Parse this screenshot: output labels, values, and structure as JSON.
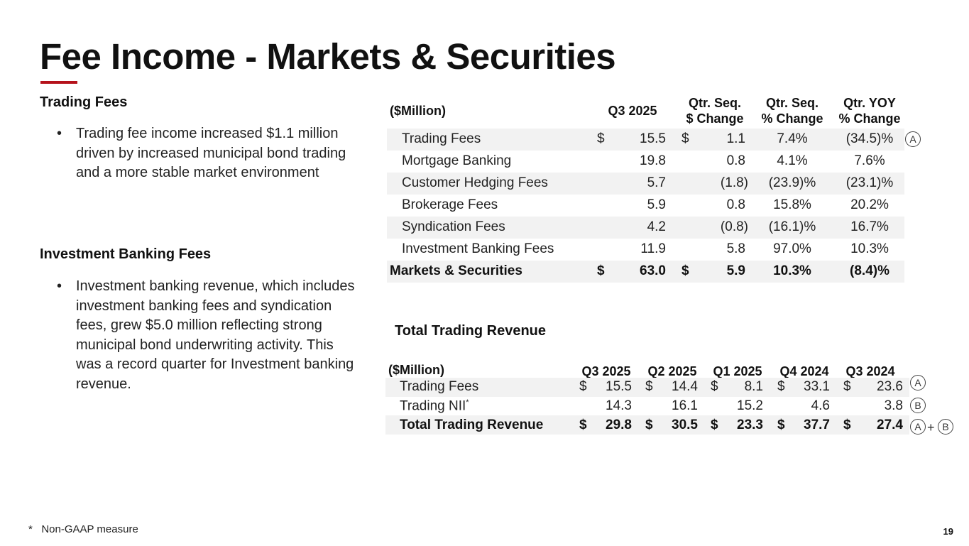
{
  "title": "Fee Income - Markets & Securities",
  "left": {
    "section1_heading": "Trading Fees",
    "section1_bullet": "Trading fee income increased $1.1 million driven by increased municipal bond trading and a more stable market environment",
    "section2_heading": "Investment Banking Fees",
    "section2_bullet": "Investment banking revenue, which includes investment banking fees and syndication fees, grew $5.0 million reflecting strong municipal bond underwriting activity. This was a record quarter for Investment banking revenue.",
    "bullet_symbol": "•"
  },
  "table1": {
    "unit_label": "($Million)",
    "col_q3": "Q3 2025",
    "col_seq_d_1": "Qtr. Seq.",
    "col_seq_d_2": "$ Change",
    "col_seq_p_1": "Qtr. Seq.",
    "col_seq_p_2": "% Change",
    "col_yoy_1": "Qtr. YOY",
    "col_yoy_2": "% Change",
    "rows": [
      {
        "label": "Trading Fees",
        "cur1": "$",
        "q3": "15.5",
        "cur2": "$",
        "chg": "1.1",
        "pct": "7.4%",
        "yoy": "(34.5)%",
        "marker": "A"
      },
      {
        "label": "Mortgage Banking",
        "cur1": "",
        "q3": "19.8",
        "cur2": "",
        "chg": "0.8",
        "pct": "4.1%",
        "yoy": "7.6%"
      },
      {
        "label": "Customer Hedging Fees",
        "cur1": "",
        "q3": "5.7",
        "cur2": "",
        "chg": "(1.8)",
        "pct": "(23.9)%",
        "yoy": "(23.1)%"
      },
      {
        "label": "Brokerage Fees",
        "cur1": "",
        "q3": "5.9",
        "cur2": "",
        "chg": "0.8",
        "pct": "15.8%",
        "yoy": "20.2%"
      },
      {
        "label": "Syndication Fees",
        "cur1": "",
        "q3": "4.2",
        "cur2": "",
        "chg": "(0.8)",
        "pct": "(16.1)%",
        "yoy": "16.7%"
      },
      {
        "label": "Investment Banking Fees",
        "cur1": "",
        "q3": "11.9",
        "cur2": "",
        "chg": "5.8",
        "pct": "97.0%",
        "yoy": "10.3%"
      }
    ],
    "total": {
      "label": "Markets & Securities",
      "cur1": "$",
      "q3": "63.0",
      "cur2": "$",
      "chg": "5.9",
      "pct": "10.3%",
      "yoy": "(8.4)%"
    }
  },
  "table2": {
    "title": "Total Trading Revenue",
    "unit_label": "($Million)",
    "cols": [
      "Q3 2025",
      "Q2 2025",
      "Q1 2025",
      "Q4 2024",
      "Q3 2024"
    ],
    "rows": [
      {
        "label": "Trading Fees",
        "cur": "$",
        "vals": [
          "15.5",
          "14.4",
          "8.1",
          "33.1",
          "23.6"
        ],
        "marker": "A"
      },
      {
        "label": "Trading NII",
        "sup": "*",
        "cur": "",
        "vals": [
          "14.3",
          "16.1",
          "15.2",
          "4.6",
          "3.8"
        ],
        "marker": "B"
      }
    ],
    "total": {
      "label": "Total Trading Revenue",
      "cur": "$",
      "vals": [
        "29.8",
        "30.5",
        "23.3",
        "37.7",
        "27.4"
      ],
      "marker_a": "A",
      "marker_plus": "+",
      "marker_b": "B"
    }
  },
  "footnote": "*   Non-GAAP measure",
  "page_number": "19",
  "colors": {
    "accent": "#b5121b",
    "band": "#f2f2f2",
    "text": "#222222"
  }
}
